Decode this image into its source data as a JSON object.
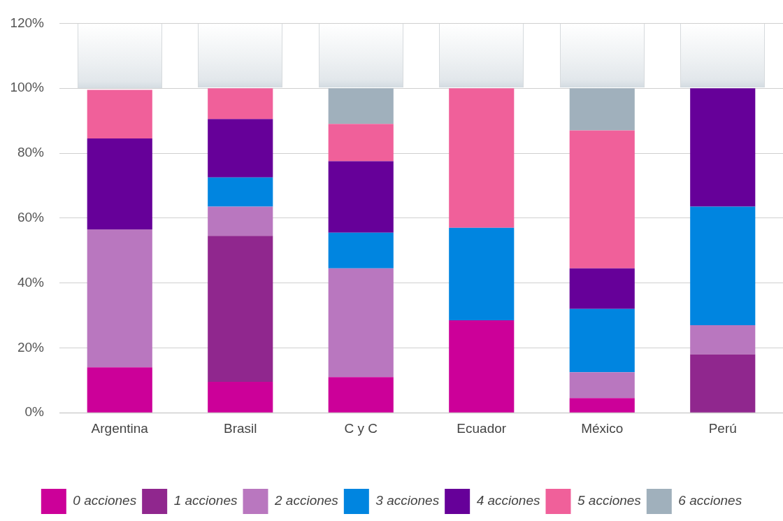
{
  "chart_data": {
    "type": "bar",
    "stacked": true,
    "categories": [
      "Argentina",
      "Brasil",
      "C y C",
      "Ecuador",
      "México",
      "Perú"
    ],
    "series": [
      {
        "name": "0 acciones",
        "color": "#cc0099",
        "values": [
          14,
          9.5,
          11,
          28.5,
          4.5,
          null
        ]
      },
      {
        "name": "1 acciones",
        "color": "#90278e",
        "values": [
          null,
          45,
          null,
          null,
          null,
          18
        ]
      },
      {
        "name": "2 acciones",
        "color": "#b977bf",
        "values": [
          42.5,
          9,
          33.5,
          null,
          8,
          9
        ]
      },
      {
        "name": "3 acciones",
        "color": "#0085e0",
        "values": [
          null,
          9,
          11,
          28.5,
          19.5,
          36.5
        ]
      },
      {
        "name": "4 acciones",
        "color": "#660099",
        "values": [
          28,
          18,
          22,
          null,
          12.5,
          36.5
        ]
      },
      {
        "name": "5 acciones",
        "color": "#f0609a",
        "values": [
          15,
          9.5,
          11.5,
          43,
          42.5,
          null
        ]
      },
      {
        "name": "6 acciones",
        "color": "#a0b0bc",
        "values": [
          null,
          null,
          11,
          null,
          13,
          null
        ]
      }
    ],
    "ylim": [
      0,
      120
    ],
    "yticks": [
      {
        "value": 0,
        "label": "0%"
      },
      {
        "value": 20,
        "label": "20%"
      },
      {
        "value": 40,
        "label": "40%"
      },
      {
        "value": 60,
        "label": "60%"
      },
      {
        "value": 80,
        "label": "80%"
      },
      {
        "value": 100,
        "label": "100%"
      },
      {
        "value": 120,
        "label": "120%"
      }
    ],
    "grid": "y",
    "legend": "bottom"
  }
}
